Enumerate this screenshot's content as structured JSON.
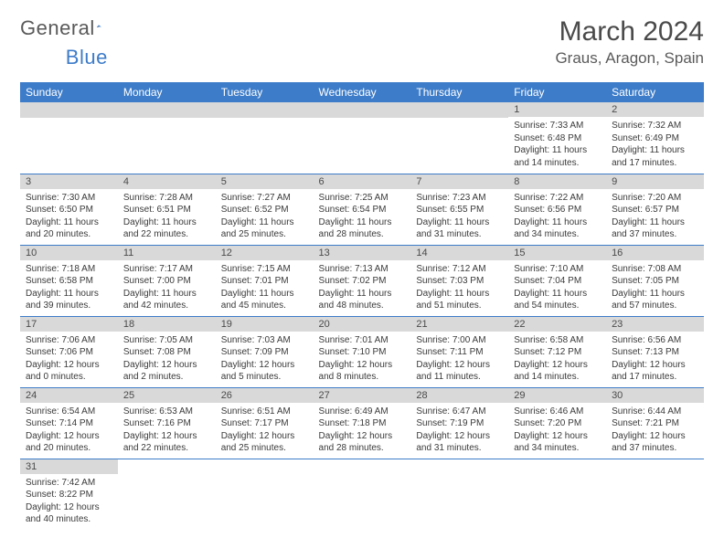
{
  "branding": {
    "name_part1": "General",
    "name_part2": "Blue",
    "logo_color": "#3d7cc9"
  },
  "header": {
    "month_title": "March 2024",
    "location": "Graus, Aragon, Spain"
  },
  "styling": {
    "header_bg": "#3d7cc9",
    "header_text": "#ffffff",
    "daynum_bg": "#d9d9d9",
    "row_divider": "#3d7cc9",
    "body_font_size": 10,
    "title_font_size": 30,
    "location_font_size": 17,
    "dayhead_font_size": 12
  },
  "calendar": {
    "day_names": [
      "Sunday",
      "Monday",
      "Tuesday",
      "Wednesday",
      "Thursday",
      "Friday",
      "Saturday"
    ],
    "weeks": [
      [
        null,
        null,
        null,
        null,
        null,
        {
          "n": "1",
          "sunrise": "Sunrise: 7:33 AM",
          "sunset": "Sunset: 6:48 PM",
          "daylight": "Daylight: 11 hours and 14 minutes."
        },
        {
          "n": "2",
          "sunrise": "Sunrise: 7:32 AM",
          "sunset": "Sunset: 6:49 PM",
          "daylight": "Daylight: 11 hours and 17 minutes."
        }
      ],
      [
        {
          "n": "3",
          "sunrise": "Sunrise: 7:30 AM",
          "sunset": "Sunset: 6:50 PM",
          "daylight": "Daylight: 11 hours and 20 minutes."
        },
        {
          "n": "4",
          "sunrise": "Sunrise: 7:28 AM",
          "sunset": "Sunset: 6:51 PM",
          "daylight": "Daylight: 11 hours and 22 minutes."
        },
        {
          "n": "5",
          "sunrise": "Sunrise: 7:27 AM",
          "sunset": "Sunset: 6:52 PM",
          "daylight": "Daylight: 11 hours and 25 minutes."
        },
        {
          "n": "6",
          "sunrise": "Sunrise: 7:25 AM",
          "sunset": "Sunset: 6:54 PM",
          "daylight": "Daylight: 11 hours and 28 minutes."
        },
        {
          "n": "7",
          "sunrise": "Sunrise: 7:23 AM",
          "sunset": "Sunset: 6:55 PM",
          "daylight": "Daylight: 11 hours and 31 minutes."
        },
        {
          "n": "8",
          "sunrise": "Sunrise: 7:22 AM",
          "sunset": "Sunset: 6:56 PM",
          "daylight": "Daylight: 11 hours and 34 minutes."
        },
        {
          "n": "9",
          "sunrise": "Sunrise: 7:20 AM",
          "sunset": "Sunset: 6:57 PM",
          "daylight": "Daylight: 11 hours and 37 minutes."
        }
      ],
      [
        {
          "n": "10",
          "sunrise": "Sunrise: 7:18 AM",
          "sunset": "Sunset: 6:58 PM",
          "daylight": "Daylight: 11 hours and 39 minutes."
        },
        {
          "n": "11",
          "sunrise": "Sunrise: 7:17 AM",
          "sunset": "Sunset: 7:00 PM",
          "daylight": "Daylight: 11 hours and 42 minutes."
        },
        {
          "n": "12",
          "sunrise": "Sunrise: 7:15 AM",
          "sunset": "Sunset: 7:01 PM",
          "daylight": "Daylight: 11 hours and 45 minutes."
        },
        {
          "n": "13",
          "sunrise": "Sunrise: 7:13 AM",
          "sunset": "Sunset: 7:02 PM",
          "daylight": "Daylight: 11 hours and 48 minutes."
        },
        {
          "n": "14",
          "sunrise": "Sunrise: 7:12 AM",
          "sunset": "Sunset: 7:03 PM",
          "daylight": "Daylight: 11 hours and 51 minutes."
        },
        {
          "n": "15",
          "sunrise": "Sunrise: 7:10 AM",
          "sunset": "Sunset: 7:04 PM",
          "daylight": "Daylight: 11 hours and 54 minutes."
        },
        {
          "n": "16",
          "sunrise": "Sunrise: 7:08 AM",
          "sunset": "Sunset: 7:05 PM",
          "daylight": "Daylight: 11 hours and 57 minutes."
        }
      ],
      [
        {
          "n": "17",
          "sunrise": "Sunrise: 7:06 AM",
          "sunset": "Sunset: 7:06 PM",
          "daylight": "Daylight: 12 hours and 0 minutes."
        },
        {
          "n": "18",
          "sunrise": "Sunrise: 7:05 AM",
          "sunset": "Sunset: 7:08 PM",
          "daylight": "Daylight: 12 hours and 2 minutes."
        },
        {
          "n": "19",
          "sunrise": "Sunrise: 7:03 AM",
          "sunset": "Sunset: 7:09 PM",
          "daylight": "Daylight: 12 hours and 5 minutes."
        },
        {
          "n": "20",
          "sunrise": "Sunrise: 7:01 AM",
          "sunset": "Sunset: 7:10 PM",
          "daylight": "Daylight: 12 hours and 8 minutes."
        },
        {
          "n": "21",
          "sunrise": "Sunrise: 7:00 AM",
          "sunset": "Sunset: 7:11 PM",
          "daylight": "Daylight: 12 hours and 11 minutes."
        },
        {
          "n": "22",
          "sunrise": "Sunrise: 6:58 AM",
          "sunset": "Sunset: 7:12 PM",
          "daylight": "Daylight: 12 hours and 14 minutes."
        },
        {
          "n": "23",
          "sunrise": "Sunrise: 6:56 AM",
          "sunset": "Sunset: 7:13 PM",
          "daylight": "Daylight: 12 hours and 17 minutes."
        }
      ],
      [
        {
          "n": "24",
          "sunrise": "Sunrise: 6:54 AM",
          "sunset": "Sunset: 7:14 PM",
          "daylight": "Daylight: 12 hours and 20 minutes."
        },
        {
          "n": "25",
          "sunrise": "Sunrise: 6:53 AM",
          "sunset": "Sunset: 7:16 PM",
          "daylight": "Daylight: 12 hours and 22 minutes."
        },
        {
          "n": "26",
          "sunrise": "Sunrise: 6:51 AM",
          "sunset": "Sunset: 7:17 PM",
          "daylight": "Daylight: 12 hours and 25 minutes."
        },
        {
          "n": "27",
          "sunrise": "Sunrise: 6:49 AM",
          "sunset": "Sunset: 7:18 PM",
          "daylight": "Daylight: 12 hours and 28 minutes."
        },
        {
          "n": "28",
          "sunrise": "Sunrise: 6:47 AM",
          "sunset": "Sunset: 7:19 PM",
          "daylight": "Daylight: 12 hours and 31 minutes."
        },
        {
          "n": "29",
          "sunrise": "Sunrise: 6:46 AM",
          "sunset": "Sunset: 7:20 PM",
          "daylight": "Daylight: 12 hours and 34 minutes."
        },
        {
          "n": "30",
          "sunrise": "Sunrise: 6:44 AM",
          "sunset": "Sunset: 7:21 PM",
          "daylight": "Daylight: 12 hours and 37 minutes."
        }
      ],
      [
        {
          "n": "31",
          "sunrise": "Sunrise: 7:42 AM",
          "sunset": "Sunset: 8:22 PM",
          "daylight": "Daylight: 12 hours and 40 minutes."
        },
        null,
        null,
        null,
        null,
        null,
        null
      ]
    ]
  }
}
